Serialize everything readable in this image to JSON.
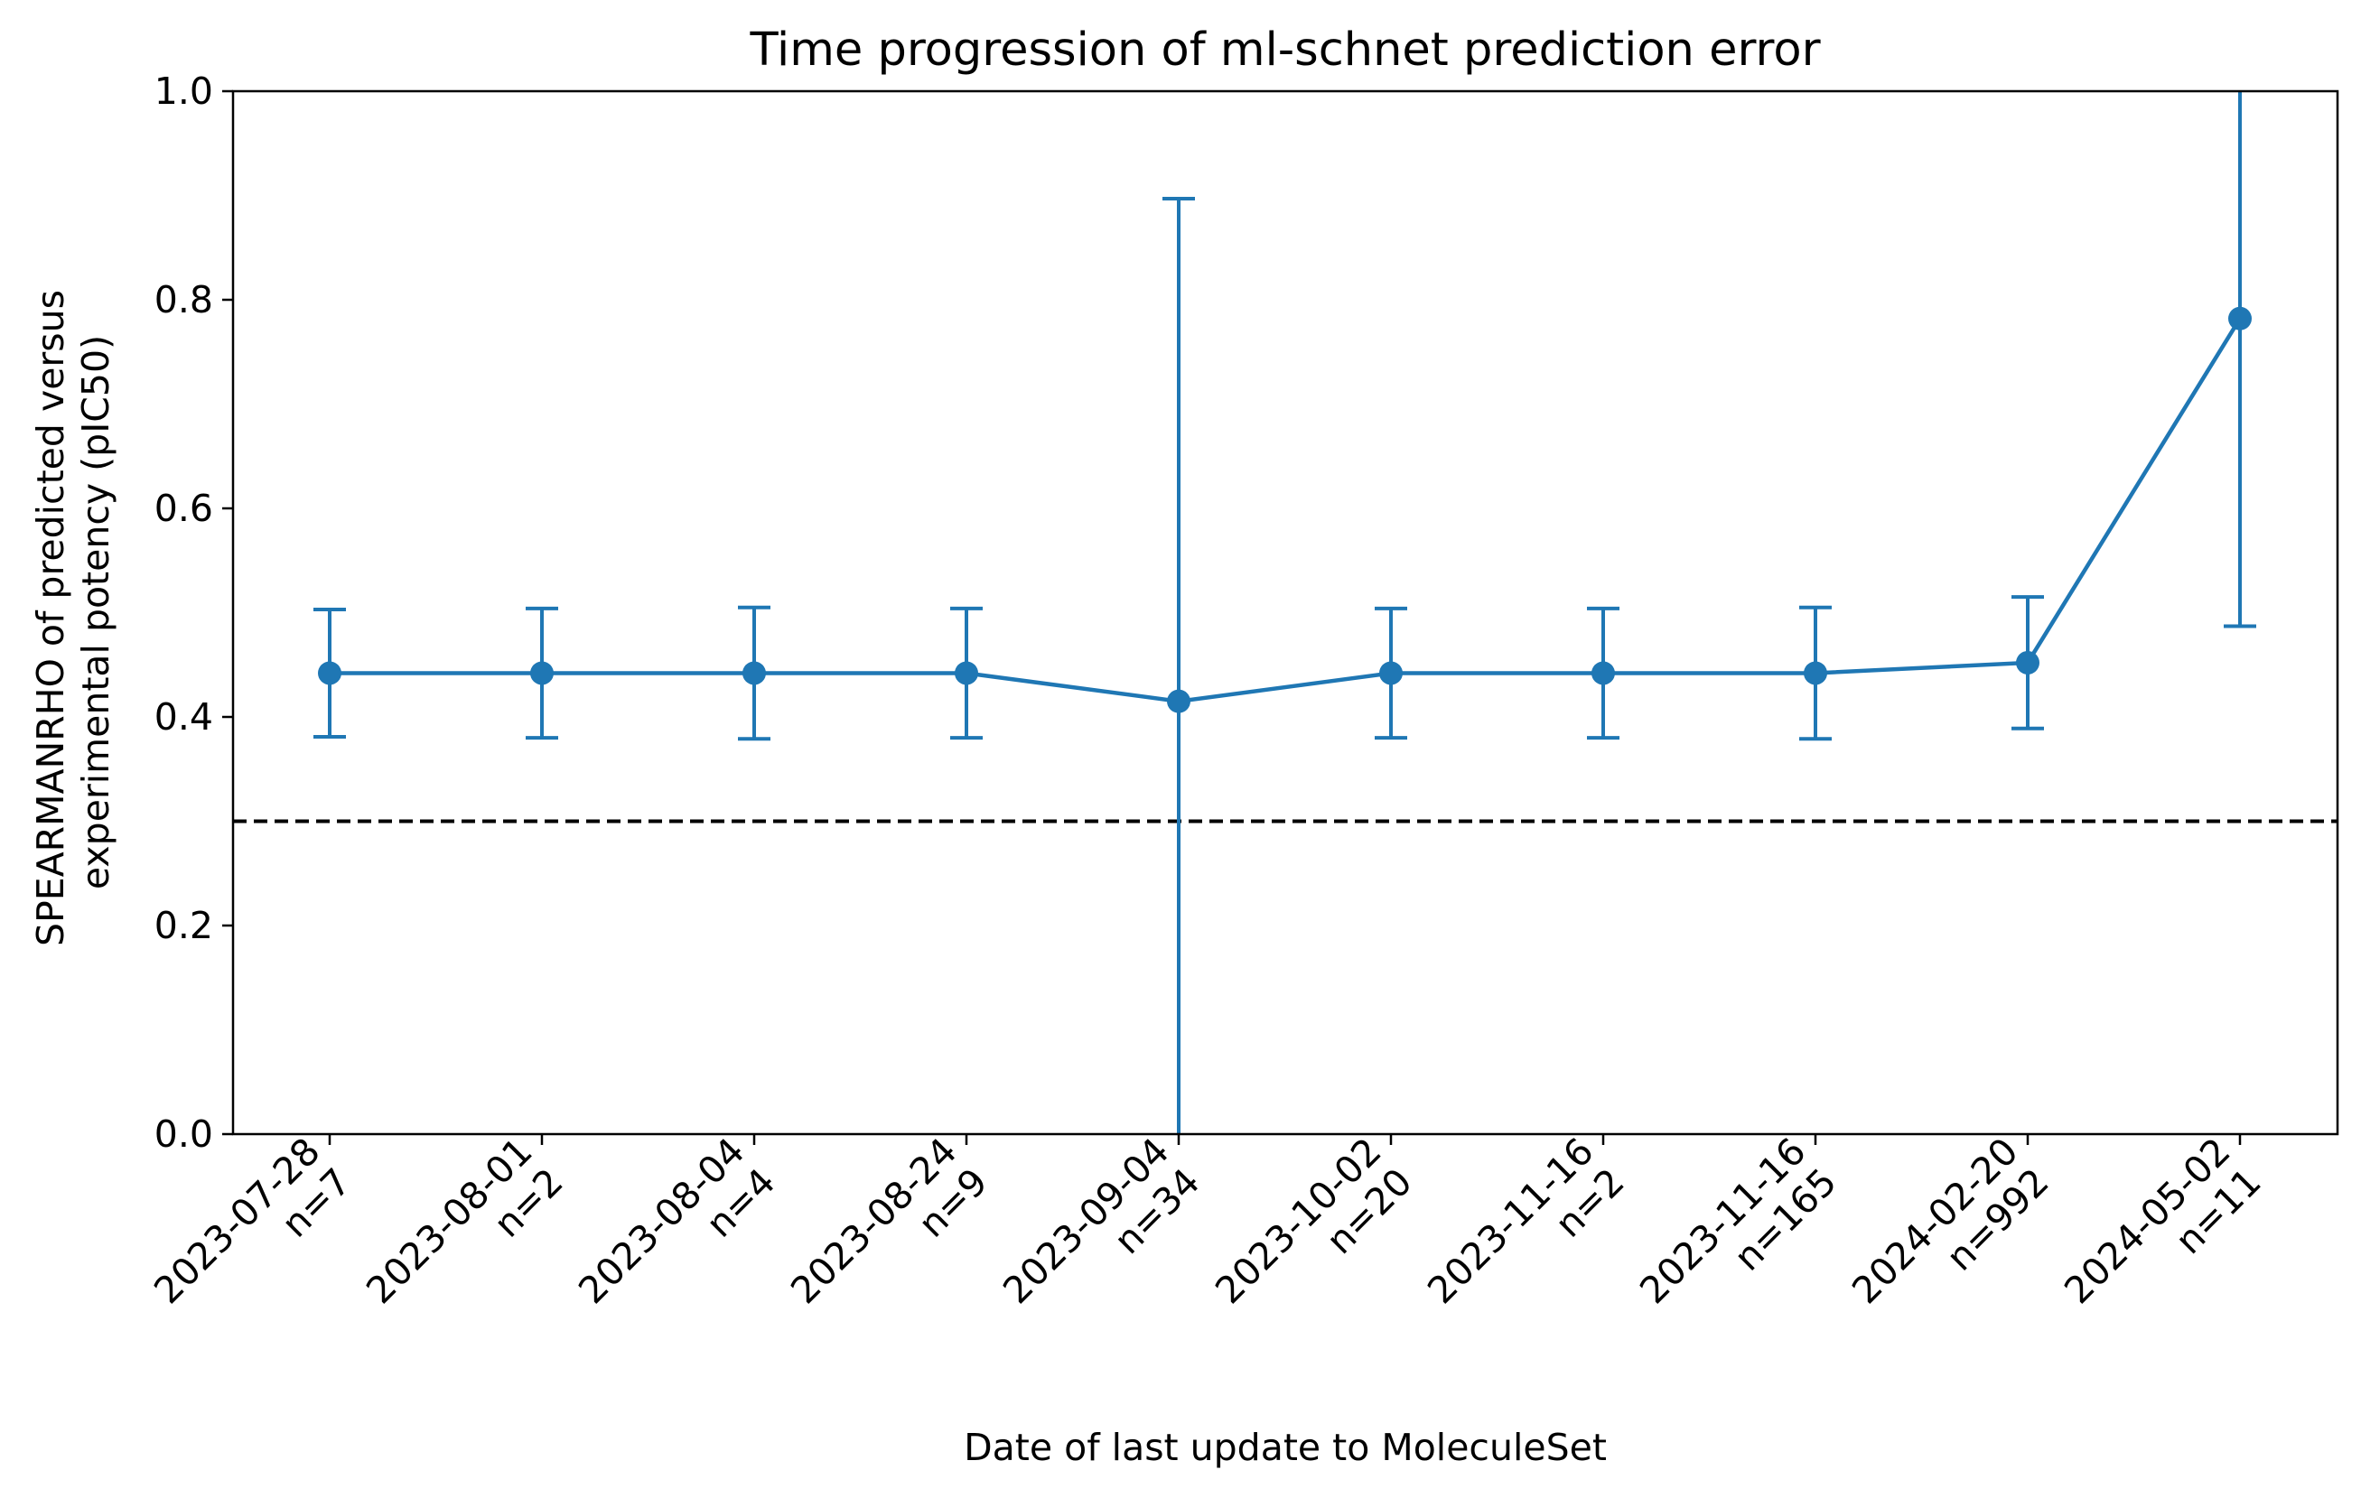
{
  "chart_data": {
    "type": "line",
    "title": "Time progression of ml-schnet prediction error",
    "xlabel": "Date of last update to MoleculeSet",
    "ylabel_lines": [
      "SPEARMANRHO of predicted versus",
      "experimental potency (pIC50)"
    ],
    "ylim": [
      0.0,
      1.0
    ],
    "yticks": [
      "0.0",
      "0.2",
      "0.4",
      "0.6",
      "0.8",
      "1.0"
    ],
    "grid": false,
    "categories": [
      {
        "date": "2023-07-28",
        "n": "n=7"
      },
      {
        "date": "2023-08-01",
        "n": "n=2"
      },
      {
        "date": "2023-08-04",
        "n": "n=4"
      },
      {
        "date": "2023-08-24",
        "n": "n=9"
      },
      {
        "date": "2023-09-04",
        "n": "n=34"
      },
      {
        "date": "2023-10-02",
        "n": "n=20"
      },
      {
        "date": "2023-11-16",
        "n": "n=2"
      },
      {
        "date": "2023-11-16",
        "n": "n=165"
      },
      {
        "date": "2024-02-20",
        "n": "n=992"
      },
      {
        "date": "2024-05-02",
        "n": "n=11"
      }
    ],
    "series": [
      {
        "color": "#1f77b4",
        "values": [
          0.442,
          0.442,
          0.442,
          0.442,
          0.415,
          0.442,
          0.442,
          0.442,
          0.452,
          0.782
        ],
        "err_low": [
          0.381,
          0.38,
          0.379,
          0.38,
          0.0,
          0.38,
          0.38,
          0.379,
          0.389,
          0.487
        ],
        "err_high": [
          0.503,
          0.504,
          0.505,
          0.504,
          0.897,
          0.504,
          0.504,
          0.505,
          0.515,
          1.0
        ]
      }
    ],
    "reference_line": {
      "y": 0.3,
      "style": "dashed",
      "color": "#000000"
    }
  }
}
